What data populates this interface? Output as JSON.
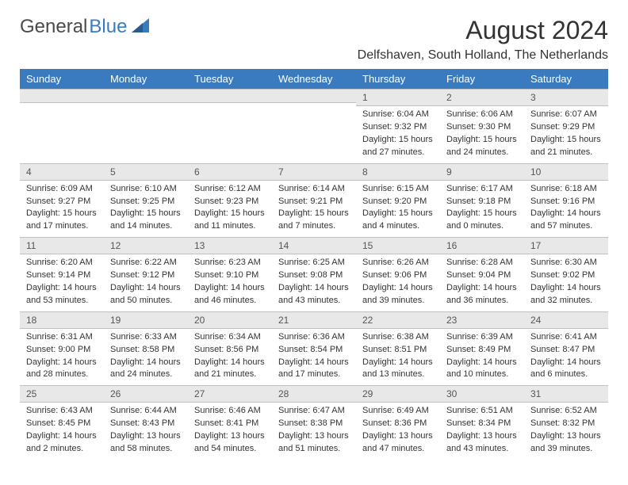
{
  "logo": {
    "text1": "General",
    "text2": "Blue"
  },
  "title": "August 2024",
  "location": "Delfshaven, South Holland, The Netherlands",
  "day_headers": [
    "Sunday",
    "Monday",
    "Tuesday",
    "Wednesday",
    "Thursday",
    "Friday",
    "Saturday"
  ],
  "colors": {
    "header_bg": "#3a7bbf",
    "header_text": "#ffffff",
    "daynum_bg": "#e8e8e8",
    "text": "#333333"
  },
  "weeks": [
    [
      {
        "empty": true
      },
      {
        "empty": true
      },
      {
        "empty": true
      },
      {
        "empty": true
      },
      {
        "num": "1",
        "sunrise": "Sunrise: 6:04 AM",
        "sunset": "Sunset: 9:32 PM",
        "daylight1": "Daylight: 15 hours",
        "daylight2": "and 27 minutes."
      },
      {
        "num": "2",
        "sunrise": "Sunrise: 6:06 AM",
        "sunset": "Sunset: 9:30 PM",
        "daylight1": "Daylight: 15 hours",
        "daylight2": "and 24 minutes."
      },
      {
        "num": "3",
        "sunrise": "Sunrise: 6:07 AM",
        "sunset": "Sunset: 9:29 PM",
        "daylight1": "Daylight: 15 hours",
        "daylight2": "and 21 minutes."
      }
    ],
    [
      {
        "num": "4",
        "sunrise": "Sunrise: 6:09 AM",
        "sunset": "Sunset: 9:27 PM",
        "daylight1": "Daylight: 15 hours",
        "daylight2": "and 17 minutes."
      },
      {
        "num": "5",
        "sunrise": "Sunrise: 6:10 AM",
        "sunset": "Sunset: 9:25 PM",
        "daylight1": "Daylight: 15 hours",
        "daylight2": "and 14 minutes."
      },
      {
        "num": "6",
        "sunrise": "Sunrise: 6:12 AM",
        "sunset": "Sunset: 9:23 PM",
        "daylight1": "Daylight: 15 hours",
        "daylight2": "and 11 minutes."
      },
      {
        "num": "7",
        "sunrise": "Sunrise: 6:14 AM",
        "sunset": "Sunset: 9:21 PM",
        "daylight1": "Daylight: 15 hours",
        "daylight2": "and 7 minutes."
      },
      {
        "num": "8",
        "sunrise": "Sunrise: 6:15 AM",
        "sunset": "Sunset: 9:20 PM",
        "daylight1": "Daylight: 15 hours",
        "daylight2": "and 4 minutes."
      },
      {
        "num": "9",
        "sunrise": "Sunrise: 6:17 AM",
        "sunset": "Sunset: 9:18 PM",
        "daylight1": "Daylight: 15 hours",
        "daylight2": "and 0 minutes."
      },
      {
        "num": "10",
        "sunrise": "Sunrise: 6:18 AM",
        "sunset": "Sunset: 9:16 PM",
        "daylight1": "Daylight: 14 hours",
        "daylight2": "and 57 minutes."
      }
    ],
    [
      {
        "num": "11",
        "sunrise": "Sunrise: 6:20 AM",
        "sunset": "Sunset: 9:14 PM",
        "daylight1": "Daylight: 14 hours",
        "daylight2": "and 53 minutes."
      },
      {
        "num": "12",
        "sunrise": "Sunrise: 6:22 AM",
        "sunset": "Sunset: 9:12 PM",
        "daylight1": "Daylight: 14 hours",
        "daylight2": "and 50 minutes."
      },
      {
        "num": "13",
        "sunrise": "Sunrise: 6:23 AM",
        "sunset": "Sunset: 9:10 PM",
        "daylight1": "Daylight: 14 hours",
        "daylight2": "and 46 minutes."
      },
      {
        "num": "14",
        "sunrise": "Sunrise: 6:25 AM",
        "sunset": "Sunset: 9:08 PM",
        "daylight1": "Daylight: 14 hours",
        "daylight2": "and 43 minutes."
      },
      {
        "num": "15",
        "sunrise": "Sunrise: 6:26 AM",
        "sunset": "Sunset: 9:06 PM",
        "daylight1": "Daylight: 14 hours",
        "daylight2": "and 39 minutes."
      },
      {
        "num": "16",
        "sunrise": "Sunrise: 6:28 AM",
        "sunset": "Sunset: 9:04 PM",
        "daylight1": "Daylight: 14 hours",
        "daylight2": "and 36 minutes."
      },
      {
        "num": "17",
        "sunrise": "Sunrise: 6:30 AM",
        "sunset": "Sunset: 9:02 PM",
        "daylight1": "Daylight: 14 hours",
        "daylight2": "and 32 minutes."
      }
    ],
    [
      {
        "num": "18",
        "sunrise": "Sunrise: 6:31 AM",
        "sunset": "Sunset: 9:00 PM",
        "daylight1": "Daylight: 14 hours",
        "daylight2": "and 28 minutes."
      },
      {
        "num": "19",
        "sunrise": "Sunrise: 6:33 AM",
        "sunset": "Sunset: 8:58 PM",
        "daylight1": "Daylight: 14 hours",
        "daylight2": "and 24 minutes."
      },
      {
        "num": "20",
        "sunrise": "Sunrise: 6:34 AM",
        "sunset": "Sunset: 8:56 PM",
        "daylight1": "Daylight: 14 hours",
        "daylight2": "and 21 minutes."
      },
      {
        "num": "21",
        "sunrise": "Sunrise: 6:36 AM",
        "sunset": "Sunset: 8:54 PM",
        "daylight1": "Daylight: 14 hours",
        "daylight2": "and 17 minutes."
      },
      {
        "num": "22",
        "sunrise": "Sunrise: 6:38 AM",
        "sunset": "Sunset: 8:51 PM",
        "daylight1": "Daylight: 14 hours",
        "daylight2": "and 13 minutes."
      },
      {
        "num": "23",
        "sunrise": "Sunrise: 6:39 AM",
        "sunset": "Sunset: 8:49 PM",
        "daylight1": "Daylight: 14 hours",
        "daylight2": "and 10 minutes."
      },
      {
        "num": "24",
        "sunrise": "Sunrise: 6:41 AM",
        "sunset": "Sunset: 8:47 PM",
        "daylight1": "Daylight: 14 hours",
        "daylight2": "and 6 minutes."
      }
    ],
    [
      {
        "num": "25",
        "sunrise": "Sunrise: 6:43 AM",
        "sunset": "Sunset: 8:45 PM",
        "daylight1": "Daylight: 14 hours",
        "daylight2": "and 2 minutes."
      },
      {
        "num": "26",
        "sunrise": "Sunrise: 6:44 AM",
        "sunset": "Sunset: 8:43 PM",
        "daylight1": "Daylight: 13 hours",
        "daylight2": "and 58 minutes."
      },
      {
        "num": "27",
        "sunrise": "Sunrise: 6:46 AM",
        "sunset": "Sunset: 8:41 PM",
        "daylight1": "Daylight: 13 hours",
        "daylight2": "and 54 minutes."
      },
      {
        "num": "28",
        "sunrise": "Sunrise: 6:47 AM",
        "sunset": "Sunset: 8:38 PM",
        "daylight1": "Daylight: 13 hours",
        "daylight2": "and 51 minutes."
      },
      {
        "num": "29",
        "sunrise": "Sunrise: 6:49 AM",
        "sunset": "Sunset: 8:36 PM",
        "daylight1": "Daylight: 13 hours",
        "daylight2": "and 47 minutes."
      },
      {
        "num": "30",
        "sunrise": "Sunrise: 6:51 AM",
        "sunset": "Sunset: 8:34 PM",
        "daylight1": "Daylight: 13 hours",
        "daylight2": "and 43 minutes."
      },
      {
        "num": "31",
        "sunrise": "Sunrise: 6:52 AM",
        "sunset": "Sunset: 8:32 PM",
        "daylight1": "Daylight: 13 hours",
        "daylight2": "and 39 minutes."
      }
    ]
  ]
}
